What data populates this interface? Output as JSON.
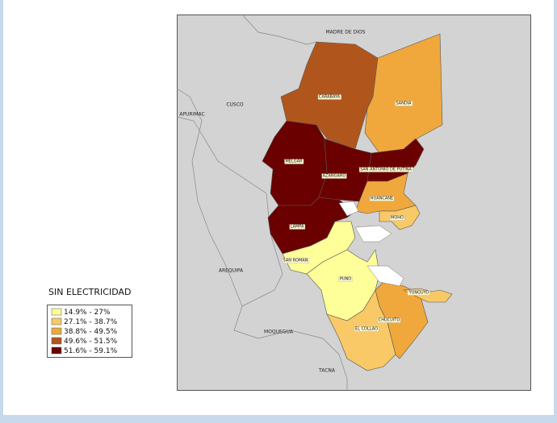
{
  "regions": [
    "MADRE DE DIOS",
    "CUSCO",
    "APURIMAC",
    "AREQUIPA",
    "MOQUEGUA",
    "TACNA"
  ],
  "provinces": [
    {
      "name": "CARABAYA",
      "color": "#b0561c"
    },
    {
      "name": "SANDIA",
      "color": "#f0a83c"
    },
    {
      "name": "MELGAR",
      "color": "#6b0000"
    },
    {
      "name": "AZANGARO",
      "color": "#6b0000"
    },
    {
      "name": "SAN ANTONIO DE PUTINA",
      "color": "#6b0000"
    },
    {
      "name": "HUANCANE",
      "color": "#f0a83c"
    },
    {
      "name": "MOHO",
      "color": "#f8c966"
    },
    {
      "name": "LAMPA",
      "color": "#6b0000"
    },
    {
      "name": "SAN ROMAN",
      "color": "#ffff99"
    },
    {
      "name": "PUNO",
      "color": "#ffff99"
    },
    {
      "name": "EL COLLAO",
      "color": "#f8c966"
    },
    {
      "name": "CHUCUITO",
      "color": "#f0a83c"
    },
    {
      "name": "YUNGUYO",
      "color": "#f8c966"
    }
  ],
  "legend": {
    "title": "SIN ELECTRICIDAD",
    "items": [
      {
        "label": "14.9% - 27%",
        "color": "#ffff99"
      },
      {
        "label": "27.1% - 38.7%",
        "color": "#f8c966"
      },
      {
        "label": "38.8% - 49.5%",
        "color": "#f0a83c"
      },
      {
        "label": "49.6% - 51.5%",
        "color": "#b0561c"
      },
      {
        "label": "51.6% - 59.1%",
        "color": "#6b0000"
      }
    ]
  }
}
